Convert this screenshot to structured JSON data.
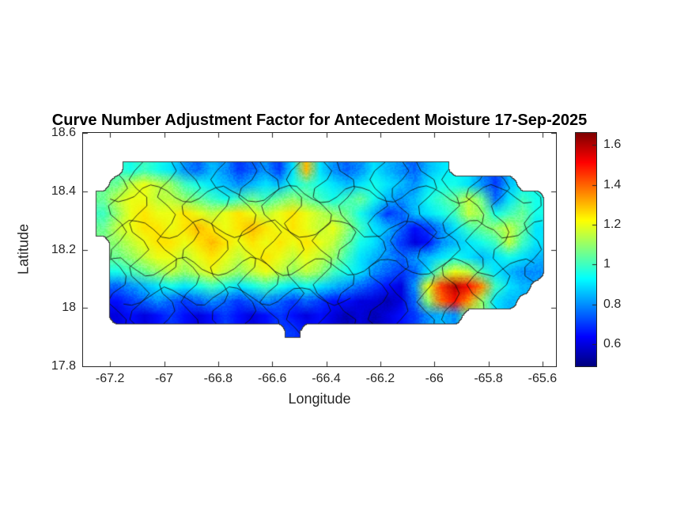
{
  "chart_data": {
    "type": "heatmap",
    "title": "Curve Number Adjustment Factor for Antecedent Moisture 17-Sep-2025",
    "xlabel": "Longitude",
    "ylabel": "Latitude",
    "region": "Puerto Rico with municipal boundaries overlaid",
    "xlim": [
      -67.3,
      -65.55
    ],
    "ylim": [
      17.8,
      18.6
    ],
    "xticks": [
      -67.2,
      -67,
      -66.8,
      -66.6,
      -66.4,
      -66.2,
      -66,
      -65.8,
      -65.6
    ],
    "xtick_labels": [
      "-67.2",
      "-67",
      "-66.8",
      "-66.6",
      "-66.4",
      "-66.2",
      "-66",
      "-65.8",
      "-65.6"
    ],
    "yticks": [
      17.8,
      18,
      18.2,
      18.4,
      18.6
    ],
    "ytick_labels": [
      "17.8",
      "18",
      "18.2",
      "18.4",
      "18.6"
    ],
    "colormap": "jet",
    "clim": [
      0.49,
      1.66
    ],
    "colorbar_ticks": [
      0.6,
      0.8,
      1,
      1.2,
      1.4,
      1.6
    ],
    "colorbar_tick_labels": [
      "0.6",
      "0.8",
      "1",
      "1.2",
      "1.4",
      "1.6"
    ],
    "grid": {
      "lon_start": -67.225,
      "lon_step": 0.05,
      "lat_start": 18.475,
      "lat_step": -0.05,
      "values": [
        [
          null,
          null,
          0.95,
          1,
          0.95,
          0.9,
          0.8,
          0.75,
          0.85,
          0.8,
          0.7,
          0.75,
          0.8,
          0.7,
          0.9,
          1.3,
          0.9,
          0.8,
          0.75,
          0.8,
          0.9,
          0.85,
          0.8,
          0.75,
          0.85,
          0.9,
          null,
          null,
          null,
          null,
          null,
          null,
          null,
          null
        ],
        [
          null,
          1.05,
          1.15,
          1.2,
          1.15,
          1.1,
          1,
          0.95,
          0.9,
          0.85,
          0.8,
          0.85,
          0.9,
          0.85,
          0.95,
          1,
          0.95,
          0.9,
          0.85,
          0.9,
          0.95,
          0.9,
          0.85,
          0.8,
          0.9,
          0.95,
          0.95,
          0.9,
          0.8,
          0.7,
          0.85,
          null,
          null,
          null
        ],
        [
          1.05,
          1.15,
          1.2,
          1.2,
          1.15,
          1.15,
          1.1,
          1.05,
          1,
          0.95,
          1,
          1.05,
          1,
          1.05,
          1.1,
          1.05,
          1,
          0.95,
          1,
          1.05,
          0.95,
          0.85,
          0.8,
          0.85,
          0.95,
          1,
          1.05,
          1.15,
          1.05,
          0.75,
          0.9,
          1,
          0.95,
          null
        ],
        [
          1,
          1.1,
          1.2,
          1.25,
          1.2,
          1.2,
          1.25,
          1.2,
          1.15,
          1.2,
          1.25,
          1.2,
          1.15,
          1.2,
          1.25,
          1.2,
          1.15,
          1.1,
          1.05,
          0.95,
          0.85,
          0.7,
          0.75,
          0.85,
          0.9,
          0.95,
          1,
          1.15,
          1.1,
          0.95,
          1,
          1.05,
          0.95,
          null
        ],
        [
          1.05,
          1.15,
          1.2,
          1.25,
          1.25,
          1.2,
          1.25,
          1.3,
          1.25,
          1.2,
          1.25,
          1.3,
          1.25,
          1.2,
          1.25,
          1.2,
          1.15,
          1.2,
          1.1,
          1,
          0.9,
          0.85,
          0.75,
          0.65,
          0.7,
          0.8,
          0.9,
          1,
          1.05,
          1.1,
          1.15,
          1.05,
          0.9,
          null
        ],
        [
          null,
          1.1,
          1.15,
          1.2,
          1.25,
          1.25,
          1.2,
          1.25,
          1.3,
          1.25,
          1.2,
          1.25,
          1.2,
          1.25,
          1.2,
          1.25,
          1.2,
          1.15,
          1.05,
          0.95,
          0.9,
          0.8,
          0.7,
          0.6,
          0.65,
          0.8,
          0.85,
          0.9,
          0.95,
          1,
          1.15,
          1,
          0.9,
          null
        ],
        [
          null,
          1.05,
          1.1,
          1.15,
          1.2,
          1.2,
          1.15,
          1.2,
          1.25,
          1.2,
          1.15,
          1.2,
          1.25,
          1.2,
          1.15,
          1.2,
          1.15,
          1.1,
          1,
          0.9,
          0.85,
          0.8,
          0.75,
          0.8,
          0.85,
          0.9,
          0.95,
          0.9,
          0.85,
          0.9,
          0.95,
          0.9,
          0.85,
          null
        ],
        [
          null,
          0.95,
          1,
          1.05,
          1.1,
          1.15,
          1.1,
          1.15,
          1.2,
          1.15,
          1.1,
          1.15,
          1.2,
          1.15,
          1.1,
          1.15,
          1.1,
          1,
          0.95,
          0.9,
          0.8,
          0.75,
          0.7,
          0.75,
          0.9,
          1.1,
          1.2,
          1.15,
          1,
          0.9,
          0.85,
          0.8,
          0.8,
          null
        ],
        [
          null,
          0.75,
          0.8,
          0.85,
          0.9,
          0.95,
          0.9,
          0.95,
          1,
          0.95,
          0.9,
          0.95,
          1,
          0.95,
          0.9,
          0.95,
          0.9,
          0.85,
          0.8,
          0.75,
          0.7,
          0.65,
          0.6,
          0.8,
          1.2,
          1.45,
          1.6,
          1.5,
          1.35,
          1,
          0.9,
          0.85,
          null,
          null
        ],
        [
          null,
          0.65,
          0.7,
          0.75,
          0.8,
          0.75,
          0.7,
          0.75,
          0.8,
          0.75,
          0.7,
          0.75,
          0.8,
          0.75,
          0.7,
          0.75,
          0.7,
          0.65,
          0.65,
          0.6,
          0.6,
          0.55,
          0.6,
          0.75,
          1.1,
          1.4,
          1.5,
          1.35,
          1.1,
          0.9,
          0.85,
          null,
          null,
          null
        ],
        [
          null,
          0.6,
          0.65,
          0.6,
          0.65,
          0.7,
          0.65,
          0.6,
          0.65,
          0.7,
          0.65,
          0.6,
          0.65,
          0.7,
          0.65,
          0.6,
          0.65,
          0.6,
          0.55,
          0.6,
          0.55,
          0.6,
          0.65,
          0.7,
          0.8,
          0.85,
          0.8,
          null,
          null,
          null,
          null,
          null,
          null,
          null
        ],
        [
          null,
          null,
          null,
          null,
          null,
          null,
          null,
          null,
          null,
          null,
          null,
          null,
          null,
          null,
          0.7,
          null,
          null,
          null,
          null,
          null,
          null,
          null,
          null,
          null,
          null,
          null,
          null,
          null,
          null,
          null,
          null,
          null,
          null,
          null
        ]
      ]
    }
  }
}
